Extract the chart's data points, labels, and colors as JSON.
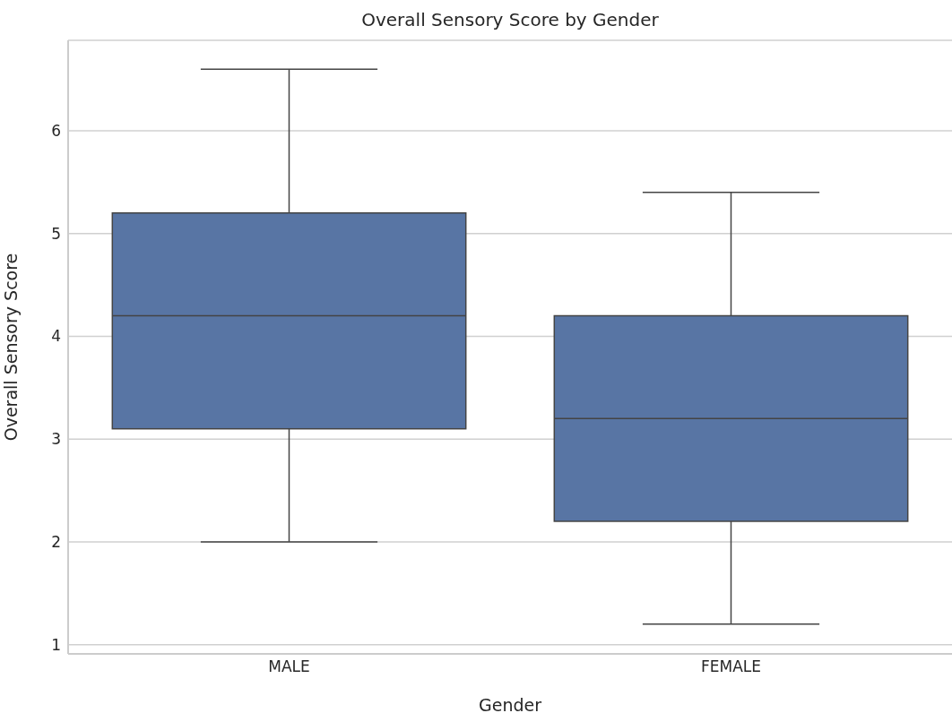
{
  "chart_data": {
    "type": "box",
    "title": "Overall Sensory Score by Gender",
    "xlabel": "Gender",
    "ylabel": "Overall Sensory Score",
    "categories": [
      "MALE",
      "FEMALE"
    ],
    "boxes": [
      {
        "low": 2.0,
        "q1": 3.1,
        "median": 4.2,
        "q3": 5.2,
        "high": 6.6
      },
      {
        "low": 1.2,
        "q1": 2.2,
        "median": 3.2,
        "q3": 4.2,
        "high": 5.4
      }
    ],
    "color": "#5875a4",
    "ylim": [
      0.91,
      6.88
    ],
    "yticks": [
      1,
      2,
      3,
      4,
      5,
      6
    ],
    "grid": "y"
  }
}
